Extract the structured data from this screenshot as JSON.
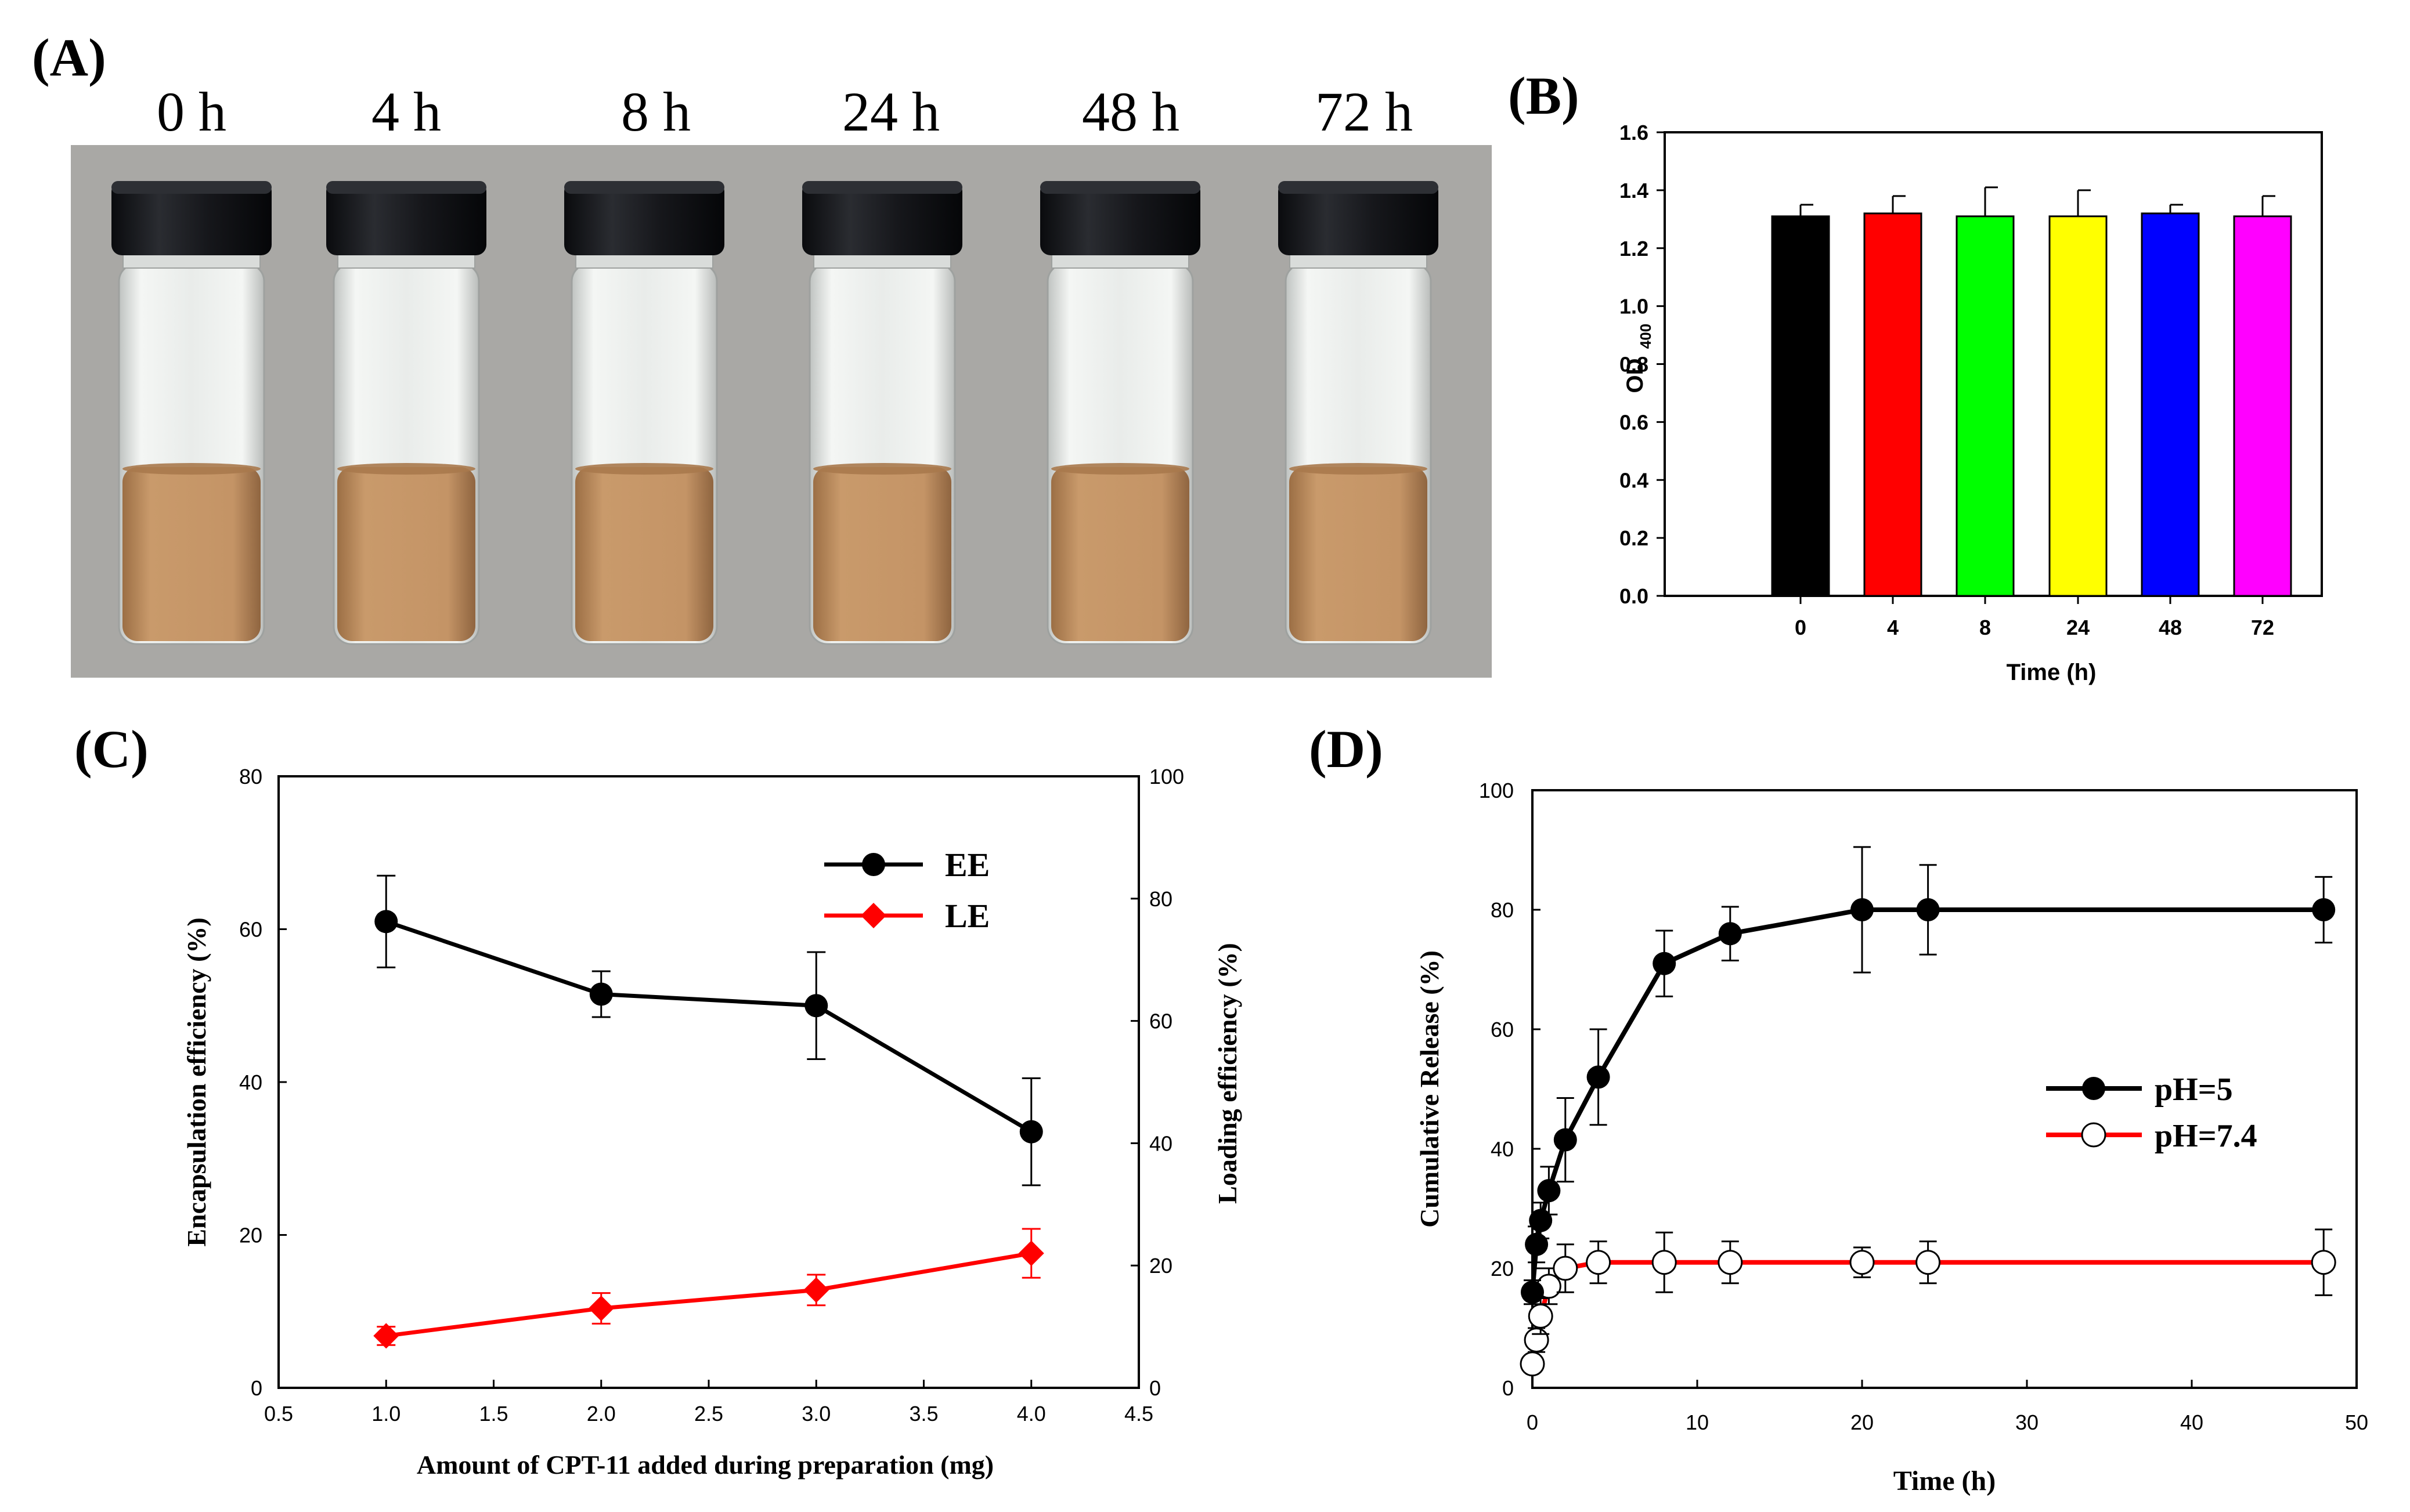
{
  "panels": {
    "A": {
      "label": "(A)",
      "times": [
        "0 h",
        "4 h",
        "8 h",
        "24 h",
        "48 h",
        "72 h"
      ],
      "colors": {
        "background": "#a9a8a5",
        "cap": "#16171b",
        "liquid": "#bf8f60",
        "glass": "#e6e9e6"
      }
    },
    "B": {
      "label": "(B)"
    },
    "C": {
      "label": "(C)"
    },
    "D": {
      "label": "(D)"
    }
  },
  "chart_data": [
    {
      "id": "B",
      "type": "bar",
      "title": "",
      "xlabel": "Time (h)",
      "ylabel": "OD",
      "ylabel_sub": "400",
      "categories": [
        "0",
        "4",
        "8",
        "24",
        "48",
        "72"
      ],
      "values": [
        1.31,
        1.32,
        1.31,
        1.31,
        1.32,
        1.31
      ],
      "errors": [
        0.04,
        0.06,
        0.1,
        0.09,
        0.03,
        0.07
      ],
      "colors": [
        "#000000",
        "#ff0000",
        "#00ff00",
        "#ffff00",
        "#0000ff",
        "#ff00ff"
      ],
      "ylim": [
        0,
        1.6
      ],
      "yticks": [
        "0.0",
        "0.2",
        "0.4",
        "0.6",
        "0.8",
        "1.0",
        "1.2",
        "1.4",
        "1.6"
      ],
      "grid": false
    },
    {
      "id": "C",
      "type": "line",
      "xlabel": "Amount of CPT-11 added during preparation (mg)",
      "ylabel": "Encapsulation efficiency (%)",
      "y2label": "Loading efficiency (%)",
      "xlim": [
        0.5,
        4.5
      ],
      "ylim": [
        0,
        80
      ],
      "y2lim": [
        0,
        100
      ],
      "xticks": [
        "0.5",
        "1.0",
        "1.5",
        "2.0",
        "2.5",
        "3.0",
        "3.5",
        "4.0",
        "4.5"
      ],
      "yticks": [
        "0",
        "20",
        "40",
        "60",
        "80"
      ],
      "y2ticks": [
        "0",
        "20",
        "40",
        "60",
        "80",
        "100"
      ],
      "legend_position": "top-right",
      "series": [
        {
          "name": "EE",
          "axis": "left",
          "color": "#000000",
          "marker": "circle",
          "x": [
            1,
            2,
            3,
            4
          ],
          "y": [
            61,
            51.5,
            50,
            33.5
          ],
          "err": [
            6,
            3,
            7,
            7
          ]
        },
        {
          "name": "LE",
          "axis": "right",
          "color": "#ff0000",
          "marker": "diamond",
          "x": [
            1,
            2,
            3,
            4
          ],
          "y": [
            8.5,
            13,
            16,
            22
          ],
          "err": [
            1.5,
            2.5,
            2.5,
            4
          ]
        }
      ]
    },
    {
      "id": "D",
      "type": "line",
      "xlabel": "Time (h)",
      "ylabel": "Cumulative Release (%)",
      "xlim": [
        0,
        50
      ],
      "ylim": [
        0,
        100
      ],
      "xticks": [
        "0",
        "10",
        "20",
        "30",
        "40",
        "50"
      ],
      "yticks": [
        "0",
        "20",
        "40",
        "60",
        "80",
        "100"
      ],
      "legend_position": "center-right",
      "series": [
        {
          "name": "pH=5",
          "color": "#000000",
          "marker": "filled-circle",
          "x": [
            0,
            0.25,
            0.5,
            1,
            2,
            4,
            8,
            12,
            20,
            24,
            48
          ],
          "y": [
            16,
            24,
            28,
            33,
            41.5,
            52,
            71,
            76,
            80,
            80,
            80
          ],
          "err": [
            2,
            3,
            3,
            4,
            7,
            8,
            5.5,
            4.5,
            10.5,
            7.5,
            5.5
          ]
        },
        {
          "name": "pH=7.4",
          "color": "#ff0000",
          "marker": "open-circle",
          "x": [
            0,
            0.25,
            0.5,
            1,
            2,
            4,
            8,
            12,
            20,
            24,
            48
          ],
          "y": [
            4,
            8,
            12,
            17,
            20,
            21,
            21,
            21,
            21,
            21,
            21
          ],
          "err": [
            1,
            2,
            3,
            3,
            4,
            3.5,
            5,
            3.5,
            2.5,
            3.5,
            5.5
          ]
        }
      ]
    }
  ]
}
